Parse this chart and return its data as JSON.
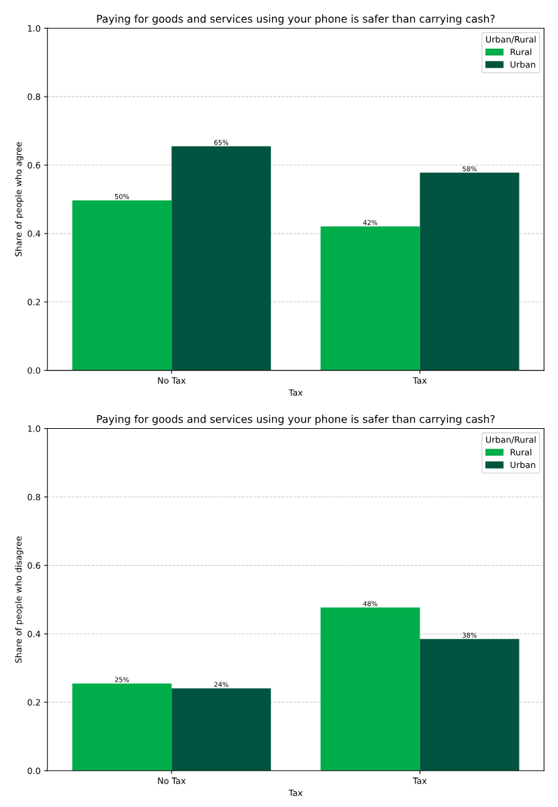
{
  "chart_data": [
    {
      "type": "bar",
      "title": "Paying for goods and services using your phone is safer than carrying cash?",
      "xlabel": "Tax",
      "ylabel": "Share of people who agree",
      "categories": [
        "No Tax",
        "Tax"
      ],
      "legend_title": "Urban/Rural",
      "legend": "top right",
      "grid": "y",
      "ylim": [
        0,
        1
      ],
      "yticks": [
        {
          "value": 0,
          "label": "0.0"
        },
        {
          "value": 0.2,
          "label": "0.2"
        },
        {
          "value": 0.4,
          "label": "0.4"
        },
        {
          "value": 0.6,
          "label": "0.6"
        },
        {
          "value": 0.8,
          "label": "0.8"
        },
        {
          "value": 1,
          "label": "1.0"
        }
      ],
      "series": [
        {
          "name": "Rural",
          "color": "#00ad4b",
          "values": [
            0.497,
            0.421
          ],
          "value_labels": [
            "50%",
            "42%"
          ]
        },
        {
          "name": "Urban",
          "color": "#005440",
          "values": [
            0.655,
            0.578
          ],
          "value_labels": [
            "65%",
            "58%"
          ]
        }
      ]
    },
    {
      "type": "bar",
      "title": "Paying for goods and services using your phone is safer than carrying cash?",
      "xlabel": "Tax",
      "ylabel": "Share of people who disagree",
      "categories": [
        "No Tax",
        "Tax"
      ],
      "legend_title": "Urban/Rural",
      "legend": "top right",
      "grid": "y",
      "ylim": [
        0,
        1
      ],
      "yticks": [
        {
          "value": 0,
          "label": "0.0"
        },
        {
          "value": 0.2,
          "label": "0.2"
        },
        {
          "value": 0.4,
          "label": "0.4"
        },
        {
          "value": 0.6,
          "label": "0.6"
        },
        {
          "value": 0.8,
          "label": "0.8"
        },
        {
          "value": 1,
          "label": "1.0"
        }
      ],
      "series": [
        {
          "name": "Rural",
          "color": "#00ad4b",
          "values": [
            0.255,
            0.477
          ],
          "value_labels": [
            "25%",
            "48%"
          ]
        },
        {
          "name": "Urban",
          "color": "#005440",
          "values": [
            0.241,
            0.385
          ],
          "value_labels": [
            "24%",
            "38%"
          ]
        }
      ]
    }
  ]
}
